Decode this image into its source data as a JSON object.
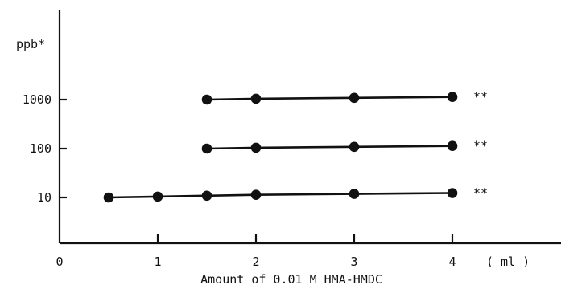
{
  "chart_data": {
    "type": "line",
    "ylabel": "ppb*",
    "xlabel": "Amount of 0.01 M HMA-HMDC",
    "x_unit": "( ml )",
    "x_ticks": [
      "0",
      "1",
      "2",
      "3",
      "4"
    ],
    "x_range": [
      0,
      4.5
    ],
    "y_scale": "log",
    "y_ticks": [
      "10",
      "100",
      "1000"
    ],
    "grid": false,
    "series": [
      {
        "label": "**",
        "x": [
          1.5,
          2,
          3,
          4
        ],
        "y": [
          1000,
          1000,
          1000,
          1000
        ]
      },
      {
        "label": "**",
        "x": [
          1.5,
          2,
          3,
          4
        ],
        "y": [
          100,
          100,
          100,
          100
        ]
      },
      {
        "label": "**",
        "x": [
          0.5,
          1,
          1.5,
          2,
          3,
          4
        ],
        "y": [
          10,
          10,
          10,
          10,
          10,
          10
        ]
      }
    ]
  }
}
